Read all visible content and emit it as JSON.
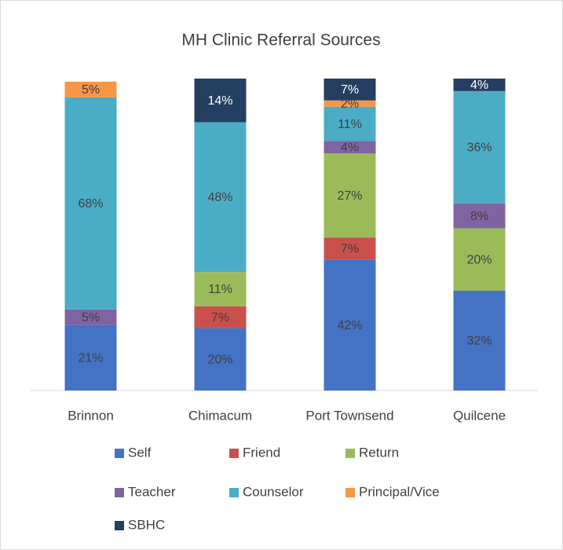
{
  "chart_data": {
    "type": "stacked-bar",
    "title": "MH Clinic Referral Sources",
    "categories": [
      "Brinnon",
      "Chimacum",
      "Port Townsend",
      "Quilcene"
    ],
    "ylim": [
      0,
      100
    ],
    "series": [
      {
        "name": "Self",
        "color": "#4472c4",
        "values": [
          21,
          20,
          42,
          32
        ],
        "value_labels": [
          "21%",
          "20%",
          "42%",
          "32%"
        ]
      },
      {
        "name": "Friend",
        "color": "#c9504d",
        "values": [
          null,
          7,
          7,
          null
        ],
        "value_labels": [
          null,
          "7%",
          "7%",
          null
        ]
      },
      {
        "name": "Return",
        "color": "#9bbb59",
        "values": [
          null,
          11,
          27,
          20
        ],
        "value_labels": [
          null,
          "11%",
          "27%",
          "20%"
        ]
      },
      {
        "name": "Teacher",
        "color": "#8064a2",
        "values": [
          5,
          null,
          4,
          8
        ],
        "value_labels": [
          "5%",
          null,
          "4%",
          "8%"
        ]
      },
      {
        "name": "Counselor",
        "color": "#4bacc6",
        "values": [
          68,
          48,
          11,
          36
        ],
        "value_labels": [
          "68%",
          "48%",
          "11%",
          "36%"
        ]
      },
      {
        "name": "Principal/Vice",
        "color": "#f79646",
        "values": [
          5,
          null,
          2,
          null
        ],
        "value_labels": [
          "5%",
          null,
          "2%",
          null
        ]
      },
      {
        "name": "SBHC",
        "color": "#243f60",
        "values": [
          null,
          14,
          7,
          4
        ],
        "value_labels": [
          null,
          "14%",
          "7%",
          "4%"
        ]
      }
    ]
  }
}
